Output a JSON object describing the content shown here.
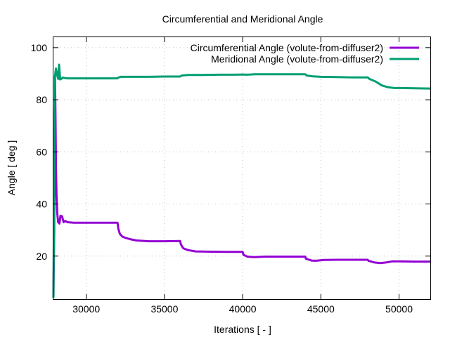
{
  "chart_data": {
    "type": "line",
    "title": "Circumferential and Meridional Angle",
    "xlabel": "Iterations [ - ]",
    "ylabel": "Angle [ deg ]",
    "xlim": [
      27900,
      52000
    ],
    "ylim": [
      3.5,
      104
    ],
    "xticks": [
      30000,
      35000,
      40000,
      45000,
      50000
    ],
    "xtick_labels": [
      "30000",
      "35000",
      "40000",
      "45000",
      "50000"
    ],
    "yticks": [
      20,
      40,
      60,
      80,
      100
    ],
    "ytick_labels": [
      "20",
      "40",
      "60",
      "80",
      "100"
    ],
    "grid": true,
    "legend_position": "top-right",
    "series": [
      {
        "name": "Circumferential Angle (volute-from-diffuser2)",
        "color": "#9400d3",
        "x": [
          27900,
          27950,
          28000,
          28030,
          28060,
          28100,
          28150,
          28200,
          28280,
          28350,
          28450,
          28550,
          28650,
          28800,
          29200,
          30000,
          31000,
          32000,
          32050,
          32150,
          32300,
          32500,
          32800,
          33200,
          34000,
          35000,
          36000,
          36050,
          36200,
          36500,
          37000,
          38000,
          39000,
          40000,
          40050,
          40300,
          40700,
          41500,
          42500,
          43500,
          44000,
          44050,
          44400,
          44700,
          45200,
          46000,
          47000,
          48000,
          48050,
          48400,
          48800,
          49200,
          49600,
          50000,
          51000,
          52000
        ],
        "y": [
          4,
          30,
          89,
          74,
          54,
          43,
          36,
          33,
          32.5,
          35.5,
          35.3,
          33,
          33.5,
          33,
          32.8,
          32.8,
          32.8,
          32.8,
          30.5,
          28.5,
          27.5,
          27,
          26.5,
          26,
          25.7,
          25.7,
          25.8,
          24.5,
          23,
          22.3,
          21.8,
          21.7,
          21.6,
          21.6,
          20.5,
          19.8,
          19.6,
          19.8,
          19.8,
          19.8,
          19.8,
          19,
          18.3,
          18.2,
          18.5,
          18.6,
          18.6,
          18.6,
          18.2,
          17.6,
          17.3,
          17.6,
          18,
          18,
          17.9,
          17.9
        ]
      },
      {
        "name": "Meridional Angle (volute-from-diffuser2)",
        "color": "#009e73",
        "x": [
          27900,
          27950,
          28000,
          28060,
          28120,
          28200,
          28260,
          28330,
          28400,
          28500,
          28650,
          28800,
          29200,
          30000,
          31000,
          32000,
          32050,
          32200,
          32500,
          33000,
          34000,
          35000,
          36000,
          36100,
          36500,
          37500,
          38500,
          39500,
          40000,
          40300,
          40800,
          41500,
          42500,
          43500,
          44000,
          44100,
          44500,
          45000,
          46000,
          47000,
          48000,
          48100,
          48500,
          48900,
          49300,
          49700,
          50200,
          51000,
          52000
        ],
        "y": [
          4,
          50,
          89,
          92,
          90,
          88,
          93.5,
          87.8,
          88,
          88.5,
          88.3,
          88.2,
          88.2,
          88.2,
          88.2,
          88.2,
          88.5,
          88.8,
          88.8,
          88.8,
          88.8,
          88.9,
          88.9,
          89.3,
          89.5,
          89.5,
          89.6,
          89.6,
          89.7,
          89.6,
          89.8,
          89.8,
          89.8,
          89.8,
          89.8,
          89.3,
          89,
          88.8,
          88.7,
          88.6,
          88.6,
          88,
          87,
          85.5,
          84.8,
          84.5,
          84.5,
          84.4,
          84.3
        ]
      }
    ]
  }
}
